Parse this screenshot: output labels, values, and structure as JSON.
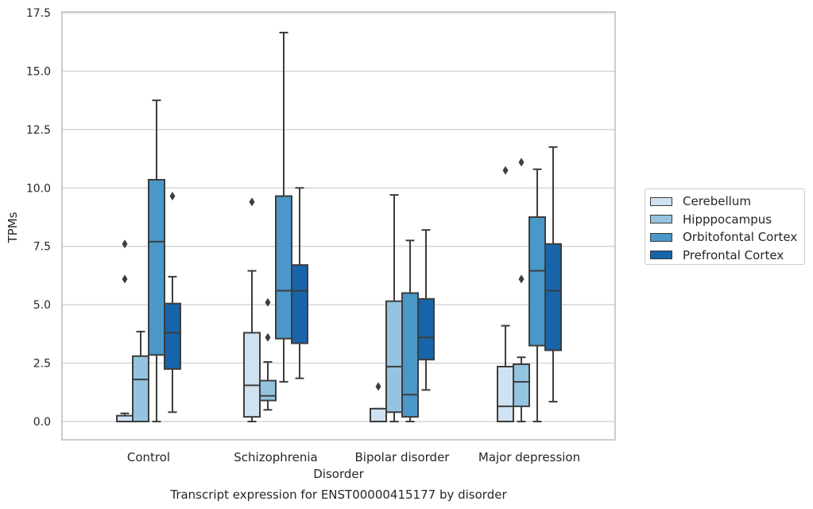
{
  "chart_data": {
    "type": "box",
    "title": "Transcript expression for ENST00000415177 by disorder",
    "xlabel": "Disorder",
    "ylabel": "TPMs",
    "ylim": [
      -0.8,
      17.5
    ],
    "yticks": [
      "0.0",
      "2.5",
      "5.0",
      "7.5",
      "10.0",
      "12.5",
      "15.0",
      "17.5"
    ],
    "ytick_values": [
      0,
      2.5,
      5,
      7.5,
      10,
      12.5,
      15,
      17.5
    ],
    "categories": [
      "Control",
      "Schizophrenia",
      "Bipolar disorder",
      "Major depression"
    ],
    "grid": "horizontal",
    "legend_position": "right",
    "series": [
      {
        "name": "Cerebellum",
        "color": "#d0e1f2",
        "boxes": [
          {
            "min": 0,
            "q1": 0,
            "median": 0,
            "q3": 0.25,
            "max": 0.35,
            "outliers": [
              6.1,
              7.6
            ]
          },
          {
            "min": 0,
            "q1": 0.2,
            "median": 1.55,
            "q3": 3.8,
            "max": 6.45,
            "outliers": [
              9.4
            ]
          },
          {
            "min": 0,
            "q1": 0,
            "median": 0,
            "q3": 0.55,
            "max": 0.55,
            "outliers": [
              1.5
            ]
          },
          {
            "min": 0,
            "q1": 0,
            "median": 0.65,
            "q3": 2.35,
            "max": 4.1,
            "outliers": [
              10.75
            ]
          }
        ]
      },
      {
        "name": "Hipppocampus",
        "color": "#94c4df",
        "boxes": [
          {
            "min": 0,
            "q1": 0,
            "median": 1.8,
            "q3": 2.8,
            "max": 3.85,
            "outliers": []
          },
          {
            "min": 0.5,
            "q1": 0.9,
            "median": 1.1,
            "q3": 1.75,
            "max": 2.55,
            "outliers": [
              3.6,
              5.1
            ]
          },
          {
            "min": 0,
            "q1": 0.4,
            "median": 2.35,
            "q3": 5.15,
            "max": 9.7,
            "outliers": []
          },
          {
            "min": 0,
            "q1": 0.65,
            "median": 1.7,
            "q3": 2.45,
            "max": 2.75,
            "outliers": [
              6.1,
              11.1
            ]
          }
        ]
      },
      {
        "name": "Orbitofontal Cortex",
        "color": "#4a98c9",
        "boxes": [
          {
            "min": 0,
            "q1": 2.85,
            "median": 7.7,
            "q3": 10.35,
            "max": 13.75,
            "outliers": []
          },
          {
            "min": 1.7,
            "q1": 3.55,
            "median": 5.6,
            "q3": 9.65,
            "max": 16.65,
            "outliers": []
          },
          {
            "min": 0,
            "q1": 0.2,
            "median": 1.15,
            "q3": 5.5,
            "max": 7.75,
            "outliers": []
          },
          {
            "min": 0,
            "q1": 3.25,
            "median": 6.45,
            "q3": 8.75,
            "max": 10.8,
            "outliers": []
          }
        ]
      },
      {
        "name": "Prefrontal Cortex",
        "color": "#1764ab",
        "boxes": [
          {
            "min": 0.4,
            "q1": 2.25,
            "median": 3.8,
            "q3": 5.05,
            "max": 6.2,
            "outliers": [
              9.65
            ]
          },
          {
            "min": 1.85,
            "q1": 3.35,
            "median": 5.6,
            "q3": 6.7,
            "max": 10.0,
            "outliers": []
          },
          {
            "min": 1.35,
            "q1": 2.65,
            "median": 3.6,
            "q3": 5.25,
            "max": 8.2,
            "outliers": []
          },
          {
            "min": 0.85,
            "q1": 3.05,
            "median": 5.6,
            "q3": 7.6,
            "max": 11.75,
            "outliers": []
          }
        ]
      }
    ]
  }
}
